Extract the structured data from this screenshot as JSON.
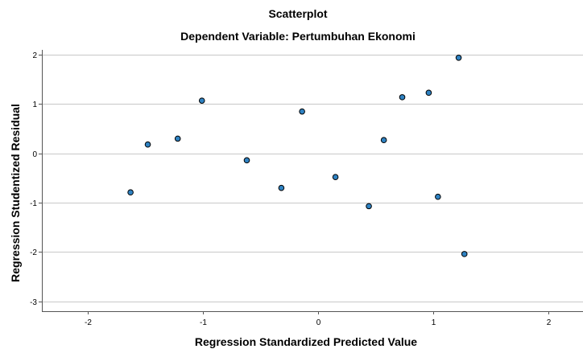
{
  "chart_data": {
    "type": "scatter",
    "title": "Scatterplot",
    "subtitle": "Dependent Variable: Pertumbuhan Ekonomi",
    "xlabel": "Regression Standardized Predicted Value",
    "ylabel": "Regression Studentized Residual",
    "xlim": [
      -2.4,
      2.3
    ],
    "ylim": [
      -3.2,
      2.1
    ],
    "xticks": [
      -2,
      -1,
      0,
      1,
      2
    ],
    "yticks": [
      2,
      1,
      0,
      -1,
      -2,
      -3
    ],
    "grid": "horizontal",
    "points": [
      {
        "x": -1.63,
        "y": -0.79
      },
      {
        "x": -1.48,
        "y": 0.18
      },
      {
        "x": -1.22,
        "y": 0.3
      },
      {
        "x": -1.01,
        "y": 1.07
      },
      {
        "x": -0.62,
        "y": -0.14
      },
      {
        "x": -0.32,
        "y": -0.7
      },
      {
        "x": -0.14,
        "y": 0.85
      },
      {
        "x": 0.15,
        "y": -0.48
      },
      {
        "x": 0.44,
        "y": -1.07
      },
      {
        "x": 0.57,
        "y": 0.27
      },
      {
        "x": 0.73,
        "y": 1.14
      },
      {
        "x": 0.96,
        "y": 1.23
      },
      {
        "x": 1.04,
        "y": -0.88
      },
      {
        "x": 1.22,
        "y": 1.94
      },
      {
        "x": 1.27,
        "y": -2.04
      }
    ],
    "colors": {
      "marker_fill": "#2f82c2",
      "marker_stroke": "#000000",
      "gridline": "#c8c8c8",
      "axis": "#555555"
    }
  }
}
